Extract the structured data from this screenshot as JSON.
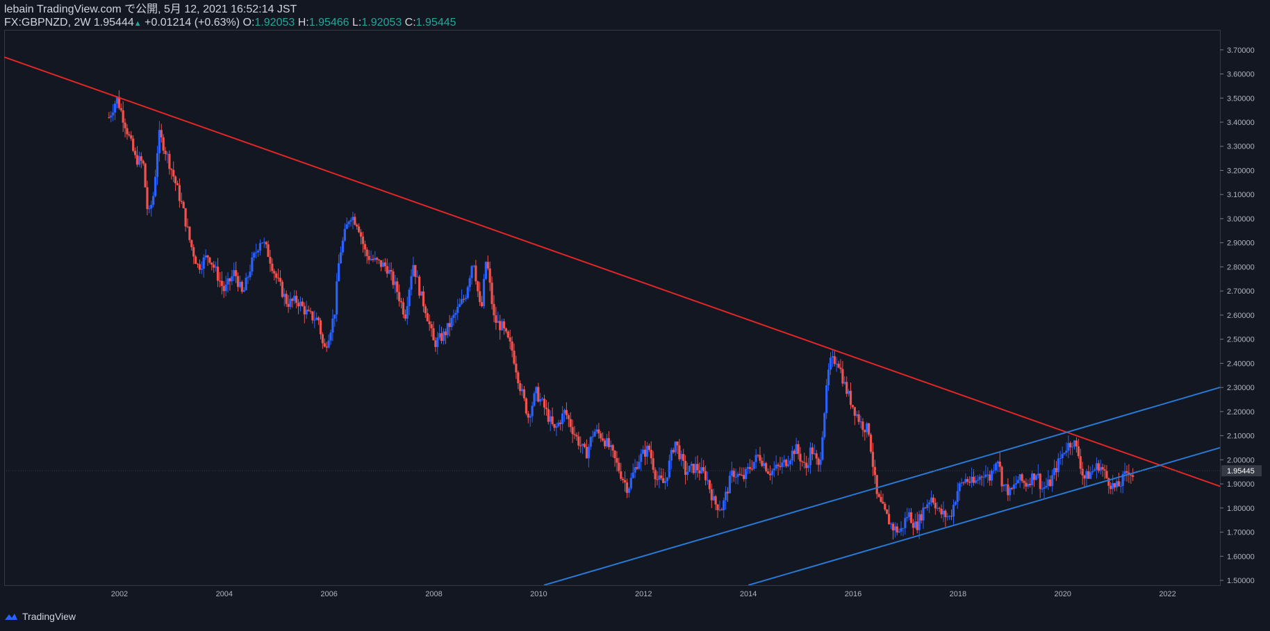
{
  "header": {
    "line1": "lebain TradingView.com で公開, 5月 12, 2021 16:52:14 JST",
    "symbol": "FX:GBPNZD, 2W",
    "last": "1.95444",
    "change": "+0.01214 (+0.63%)",
    "o_label": "O:",
    "o": "1.92053",
    "h_label": "H:",
    "h": "1.95466",
    "l_label": "L:",
    "l": "1.92053",
    "c_label": "C:",
    "c": "1.95445"
  },
  "footer": {
    "brand": "TradingView"
  },
  "colors": {
    "bg": "#131722",
    "up": "#2962ff",
    "down": "#ef5350",
    "resistance": "#e32626",
    "channel": "#2979d6"
  },
  "chart_data": {
    "type": "candlestick",
    "symbol": "FX:GBPNZD",
    "interval": "2W",
    "ylim": [
      1.48,
      3.78
    ],
    "xlim": [
      1999.8,
      2023.0
    ],
    "y_ticks": [
      "1.50000",
      "1.60000",
      "1.70000",
      "1.80000",
      "1.90000",
      "2.00000",
      "2.10000",
      "2.20000",
      "2.30000",
      "2.40000",
      "2.50000",
      "2.60000",
      "2.70000",
      "2.80000",
      "2.90000",
      "3.00000",
      "3.10000",
      "3.20000",
      "3.30000",
      "3.40000",
      "3.50000",
      "3.60000",
      "3.70000"
    ],
    "x_ticks": [
      "2002",
      "2004",
      "2006",
      "2008",
      "2010",
      "2012",
      "2014",
      "2016",
      "2018",
      "2020",
      "2022"
    ],
    "last_price_label": "1.95445",
    "price_path": [
      [
        2001.8,
        3.42
      ],
      [
        2001.95,
        3.5
      ],
      [
        2002.1,
        3.4
      ],
      [
        2002.3,
        3.25
      ],
      [
        2002.45,
        3.23
      ],
      [
        2002.55,
        3.0
      ],
      [
        2002.65,
        3.1
      ],
      [
        2002.75,
        3.35
      ],
      [
        2002.85,
        3.3
      ],
      [
        2003.0,
        3.2
      ],
      [
        2003.2,
        3.05
      ],
      [
        2003.35,
        2.9
      ],
      [
        2003.5,
        2.8
      ],
      [
        2003.7,
        2.85
      ],
      [
        2003.9,
        2.75
      ],
      [
        2004.0,
        2.7
      ],
      [
        2004.2,
        2.78
      ],
      [
        2004.35,
        2.68
      ],
      [
        2004.5,
        2.8
      ],
      [
        2004.7,
        2.92
      ],
      [
        2004.85,
        2.85
      ],
      [
        2005.0,
        2.75
      ],
      [
        2005.2,
        2.65
      ],
      [
        2005.4,
        2.66
      ],
      [
        2005.6,
        2.6
      ],
      [
        2005.8,
        2.58
      ],
      [
        2005.9,
        2.45
      ],
      [
        2006.1,
        2.6
      ],
      [
        2006.2,
        2.85
      ],
      [
        2006.4,
        3.02
      ],
      [
        2006.55,
        2.98
      ],
      [
        2006.7,
        2.85
      ],
      [
        2006.9,
        2.82
      ],
      [
        2007.1,
        2.8
      ],
      [
        2007.3,
        2.7
      ],
      [
        2007.45,
        2.6
      ],
      [
        2007.6,
        2.82
      ],
      [
        2007.75,
        2.68
      ],
      [
        2007.85,
        2.62
      ],
      [
        2008.0,
        2.48
      ],
      [
        2008.2,
        2.52
      ],
      [
        2008.4,
        2.6
      ],
      [
        2008.6,
        2.68
      ],
      [
        2008.75,
        2.84
      ],
      [
        2008.9,
        2.6
      ],
      [
        2009.0,
        2.84
      ],
      [
        2009.15,
        2.58
      ],
      [
        2009.3,
        2.55
      ],
      [
        2009.5,
        2.45
      ],
      [
        2009.65,
        2.3
      ],
      [
        2009.8,
        2.18
      ],
      [
        2009.95,
        2.28
      ],
      [
        2010.1,
        2.22
      ],
      [
        2010.3,
        2.12
      ],
      [
        2010.5,
        2.2
      ],
      [
        2010.7,
        2.1
      ],
      [
        2010.9,
        2.02
      ],
      [
        2011.05,
        2.12
      ],
      [
        2011.2,
        2.1
      ],
      [
        2011.35,
        2.05
      ],
      [
        2011.55,
        1.95
      ],
      [
        2011.7,
        1.88
      ],
      [
        2011.9,
        2.0
      ],
      [
        2012.1,
        2.05
      ],
      [
        2012.25,
        1.92
      ],
      [
        2012.4,
        1.9
      ],
      [
        2012.6,
        2.08
      ],
      [
        2012.8,
        1.95
      ],
      [
        2013.0,
        1.97
      ],
      [
        2013.2,
        1.93
      ],
      [
        2013.35,
        1.82
      ],
      [
        2013.5,
        1.8
      ],
      [
        2013.7,
        1.95
      ],
      [
        2013.9,
        1.92
      ],
      [
        2014.0,
        1.96
      ],
      [
        2014.2,
        2.02
      ],
      [
        2014.4,
        1.95
      ],
      [
        2014.6,
        1.97
      ],
      [
        2014.75,
        2.0
      ],
      [
        2014.9,
        2.05
      ],
      [
        2015.1,
        1.96
      ],
      [
        2015.2,
        2.05
      ],
      [
        2015.35,
        1.96
      ],
      [
        2015.45,
        2.2
      ],
      [
        2015.55,
        2.4
      ],
      [
        2015.7,
        2.42
      ],
      [
        2015.85,
        2.3
      ],
      [
        2016.0,
        2.22
      ],
      [
        2016.15,
        2.15
      ],
      [
        2016.3,
        2.12
      ],
      [
        2016.45,
        1.85
      ],
      [
        2016.6,
        1.78
      ],
      [
        2016.75,
        1.72
      ],
      [
        2016.9,
        1.7
      ],
      [
        2017.05,
        1.78
      ],
      [
        2017.2,
        1.72
      ],
      [
        2017.35,
        1.8
      ],
      [
        2017.5,
        1.85
      ],
      [
        2017.65,
        1.78
      ],
      [
        2017.85,
        1.76
      ],
      [
        2018.0,
        1.88
      ],
      [
        2018.15,
        1.92
      ],
      [
        2018.3,
        1.9
      ],
      [
        2018.5,
        1.95
      ],
      [
        2018.6,
        1.92
      ],
      [
        2018.75,
        2.02
      ],
      [
        2018.85,
        1.9
      ],
      [
        2019.0,
        1.86
      ],
      [
        2019.15,
        1.92
      ],
      [
        2019.3,
        1.9
      ],
      [
        2019.5,
        1.95
      ],
      [
        2019.6,
        1.88
      ],
      [
        2019.75,
        1.9
      ],
      [
        2019.9,
        1.98
      ],
      [
        2020.05,
        2.05
      ],
      [
        2020.2,
        2.08
      ],
      [
        2020.3,
        2.02
      ],
      [
        2020.4,
        1.92
      ],
      [
        2020.55,
        1.95
      ],
      [
        2020.7,
        1.98
      ],
      [
        2020.85,
        1.92
      ],
      [
        2021.0,
        1.88
      ],
      [
        2021.1,
        1.9
      ],
      [
        2021.25,
        1.96
      ],
      [
        2021.36,
        1.93
      ]
    ],
    "trendlines": [
      {
        "name": "resistance",
        "color": "#e32626",
        "x1": 1999.8,
        "y1": 3.67,
        "x2": 2023.0,
        "y2": 1.89
      },
      {
        "name": "channel-upper",
        "color": "#2979d6",
        "x1": 2010.1,
        "y1": 1.48,
        "x2": 2023.0,
        "y2": 2.3
      },
      {
        "name": "channel-lower",
        "color": "#2979d6",
        "x1": 2014.0,
        "y1": 1.48,
        "x2": 2023.0,
        "y2": 2.05
      }
    ]
  }
}
